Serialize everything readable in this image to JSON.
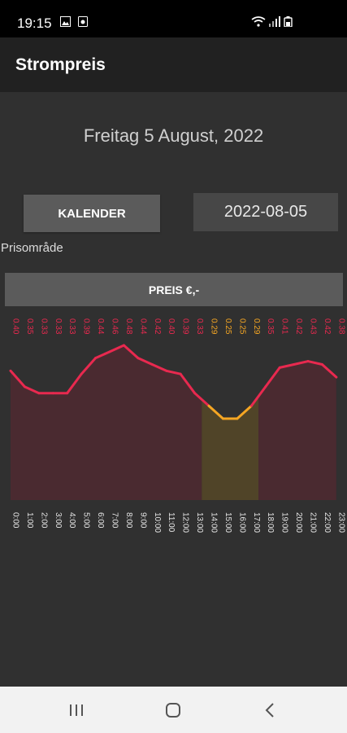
{
  "status_bar": {
    "time": "19:15"
  },
  "app_bar": {
    "title": "Strompreis"
  },
  "date_title": "Freitag 5 August, 2022",
  "kalender_button": "KALENDER",
  "date_value": "2022-08-05",
  "prisomrade_label": "Prisområde",
  "preis_button": "PREIS €,-",
  "colors": {
    "high": "#e8294f",
    "low": "#f5a623",
    "fill_high": "#4a2a30",
    "fill_low": "#504428"
  },
  "chart_data": {
    "type": "line",
    "x": [
      "0:00",
      "1:00",
      "2:00",
      "3:00",
      "4:00",
      "5:00",
      "6:00",
      "7:00",
      "8:00",
      "9:00",
      "10:00",
      "11:00",
      "12:00",
      "13:00",
      "14:00",
      "15:00",
      "16:00",
      "17:00",
      "18:00",
      "19:00",
      "20:00",
      "21:00",
      "22:00",
      "23:00"
    ],
    "value_labels": [
      "0.40",
      "0.35",
      "0.33",
      "0.33",
      "0.33",
      "0.39",
      "0.44",
      "0.46",
      "0.48",
      "0.44",
      "0.42",
      "0.40",
      "0.39",
      "0.33",
      "0.29",
      "0.25",
      "0.25",
      "0.29",
      "0.35",
      "0.41",
      "0.42",
      "0.43",
      "0.42",
      "0.38"
    ],
    "low_hours": [
      "14:00",
      "15:00",
      "16:00",
      "17:00"
    ],
    "area_fill": true
  }
}
